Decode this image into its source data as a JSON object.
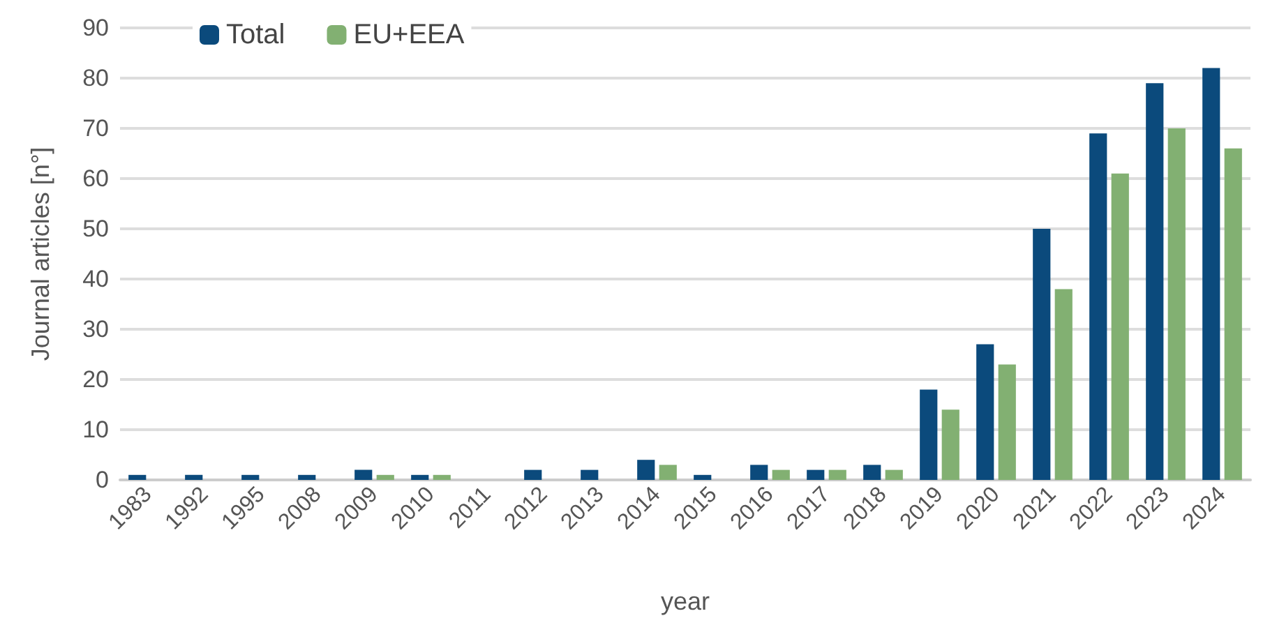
{
  "chart_data": {
    "type": "bar",
    "xlabel": "year",
    "ylabel": "Journal articles [n°]",
    "categories": [
      "1983",
      "1992",
      "1995",
      "2008",
      "2009",
      "2010",
      "2011",
      "2012",
      "2013",
      "2014",
      "2015",
      "2016",
      "2017",
      "2018",
      "2019",
      "2020",
      "2021",
      "2022",
      "2023",
      "2024"
    ],
    "series": [
      {
        "name": "Total",
        "color": "#0b4a7c",
        "values": [
          1,
          1,
          1,
          1,
          2,
          1,
          0,
          2,
          2,
          4,
          1,
          3,
          2,
          3,
          18,
          27,
          50,
          69,
          79,
          82
        ]
      },
      {
        "name": "EU+EEA",
        "color": "#82b072",
        "values": [
          0,
          0,
          0,
          0,
          1,
          1,
          0,
          0,
          0,
          3,
          0,
          2,
          2,
          2,
          14,
          23,
          38,
          61,
          70,
          66
        ]
      }
    ],
    "ylim": [
      0,
      90
    ],
    "yticks": [
      0,
      10,
      20,
      30,
      40,
      50,
      60,
      70,
      80,
      90
    ],
    "grid": "y",
    "legend": "top left"
  }
}
